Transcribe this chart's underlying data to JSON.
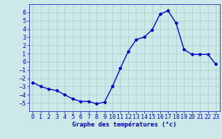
{
  "x": [
    0,
    1,
    2,
    3,
    4,
    5,
    6,
    7,
    8,
    9,
    10,
    11,
    12,
    13,
    14,
    15,
    16,
    17,
    18,
    19,
    20,
    21,
    22,
    23
  ],
  "y": [
    -2.5,
    -3.0,
    -3.3,
    -3.5,
    -4.0,
    -4.5,
    -4.8,
    -4.8,
    -5.1,
    -4.9,
    -3.0,
    -0.8,
    1.3,
    2.7,
    3.0,
    3.9,
    5.8,
    6.2,
    4.7,
    1.5,
    0.9,
    0.9,
    0.9,
    -0.3
  ],
  "line_color": "#0000cc",
  "marker": "D",
  "marker_size": 2.0,
  "linewidth": 1.0,
  "bg_color": "#cce8e8",
  "grid_color": "#aacccc",
  "xlabel": "Graphe des températures (°c)",
  "xlabel_color": "#0000bb",
  "xlabel_fontsize": 6.5,
  "tick_color": "#0000bb",
  "tick_fontsize": 6,
  "ylim": [
    -6,
    7
  ],
  "xlim": [
    -0.5,
    23.5
  ],
  "yticks": [
    -5,
    -4,
    -3,
    -2,
    -1,
    0,
    1,
    2,
    3,
    4,
    5,
    6
  ],
  "xticks": [
    0,
    1,
    2,
    3,
    4,
    5,
    6,
    7,
    8,
    9,
    10,
    11,
    12,
    13,
    14,
    15,
    16,
    17,
    18,
    19,
    20,
    21,
    22,
    23
  ]
}
